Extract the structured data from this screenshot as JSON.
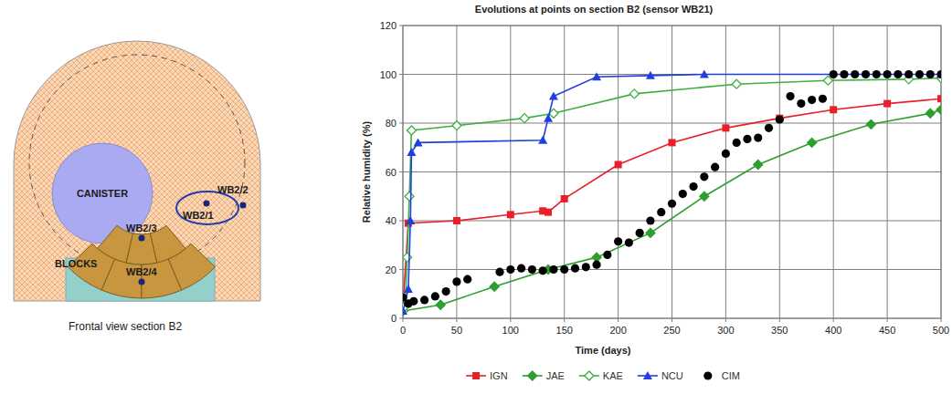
{
  "chart_data": {
    "type": "line",
    "title": "Evolutions at points on section B2 (sensor WB21)",
    "x_label": "Time (days)",
    "y_label": "Relative humidity  (%)",
    "xlim": [
      0,
      500
    ],
    "ylim": [
      0,
      120
    ],
    "xticks": [
      0,
      50,
      100,
      150,
      200,
      250,
      300,
      350,
      400,
      450,
      500
    ],
    "yticks": [
      0,
      20,
      40,
      60,
      80,
      100,
      120
    ],
    "grid": true,
    "legend": "bottom",
    "series": [
      {
        "name": "IGN",
        "color": "#e8202a",
        "marker": "square",
        "line_style": "solid",
        "x": [
          0,
          5,
          50,
          100,
          130,
          135,
          150,
          200,
          250,
          300,
          350,
          400,
          450,
          500
        ],
        "values": [
          5,
          39,
          40,
          42.5,
          44,
          43.5,
          49,
          63,
          72,
          78,
          82,
          85.5,
          88,
          90
        ]
      },
      {
        "name": "JAE",
        "color": "#2e9e2e",
        "marker": "diamond",
        "line_style": "solid",
        "x": [
          0,
          35,
          85,
          135,
          180,
          230,
          280,
          330,
          380,
          435,
          490,
          500
        ],
        "values": [
          3,
          5.5,
          13,
          20,
          25,
          35,
          50,
          63,
          72,
          79.5,
          84,
          85.5
        ]
      },
      {
        "name": "KAE",
        "color": "#3cb043",
        "marker": "diamond-open",
        "line_style": "solid",
        "x": [
          0,
          2,
          4,
          6,
          8,
          50,
          113,
          140,
          215,
          310,
          395,
          470,
          500
        ],
        "values": [
          3,
          5,
          25,
          50,
          77,
          79,
          82,
          84,
          92,
          96,
          97.5,
          98,
          98.5
        ]
      },
      {
        "name": "NCU",
        "color": "#1f3fe0",
        "marker": "triangle",
        "line_style": "solid",
        "x": [
          0,
          5,
          7,
          8,
          14,
          130,
          135,
          140,
          180,
          230,
          280,
          500
        ],
        "values": [
          3,
          12,
          40,
          68,
          72,
          73,
          82,
          91,
          99,
          99.5,
          100,
          100
        ]
      },
      {
        "name": "CIM",
        "color": "#000000",
        "marker": "circle",
        "line_style": "none",
        "x": [
          0,
          5,
          10,
          20,
          30,
          40,
          50,
          60,
          90,
          100,
          110,
          120,
          130,
          140,
          150,
          160,
          170,
          180,
          190,
          200,
          210,
          220,
          230,
          240,
          250,
          260,
          270,
          280,
          290,
          300,
          310,
          320,
          330,
          340,
          350,
          360,
          370,
          380,
          390,
          400,
          410,
          420,
          430,
          440,
          450,
          460,
          470,
          480,
          490,
          500
        ],
        "values": [
          8.5,
          6,
          7,
          7.5,
          9,
          11,
          15,
          16,
          19,
          20,
          20.5,
          20,
          19.5,
          20,
          20,
          20.5,
          21,
          22,
          26,
          31.5,
          31,
          35,
          40,
          43.5,
          47,
          51,
          54,
          58,
          62,
          67.5,
          72,
          73.5,
          74,
          78,
          81.5,
          91,
          88,
          89.5,
          90,
          100,
          100,
          100,
          100,
          100,
          100,
          100,
          100,
          100,
          100,
          100
        ]
      }
    ]
  },
  "diagram": {
    "caption": "Frontal view section B2",
    "canister": "CANISTER",
    "blocks": "BLOCKS",
    "sensors": [
      "WB2/1",
      "WB2/2",
      "WB2/3",
      "WB2/4"
    ]
  }
}
